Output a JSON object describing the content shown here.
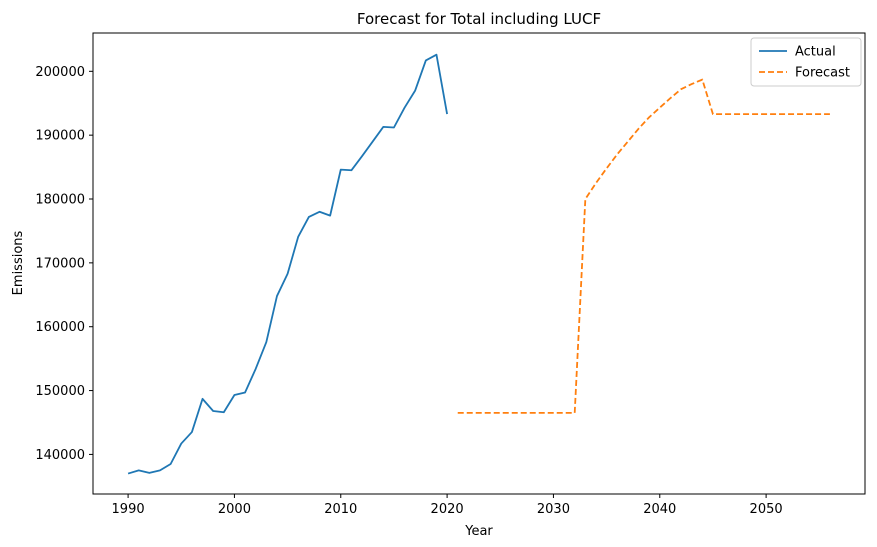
{
  "chart_data": {
    "type": "line",
    "title": "Forecast for Total including LUCF",
    "xlabel": "Year",
    "ylabel": "Emissions",
    "xlim": [
      1986.7,
      2059.3
    ],
    "ylim": [
      133800,
      206000
    ],
    "xticks": [
      1990,
      2000,
      2010,
      2020,
      2030,
      2040,
      2050
    ],
    "yticks": [
      140000,
      150000,
      160000,
      170000,
      180000,
      190000,
      200000
    ],
    "grid": false,
    "legend_position": "top-right",
    "series": [
      {
        "name": "Actual",
        "color": "#1f77b4",
        "style": "solid",
        "x": [
          1990,
          1991,
          1992,
          1993,
          1994,
          1995,
          1996,
          1997,
          1998,
          1999,
          2000,
          2001,
          2002,
          2003,
          2004,
          2005,
          2006,
          2007,
          2008,
          2009,
          2010,
          2011,
          2012,
          2013,
          2014,
          2015,
          2016,
          2017,
          2018,
          2019,
          2020
        ],
        "y": [
          137000,
          137500,
          137100,
          137500,
          138500,
          141700,
          143500,
          148700,
          146800,
          146600,
          149300,
          149700,
          153400,
          157600,
          164800,
          168300,
          174100,
          177200,
          178000,
          177400,
          184600,
          184500,
          186700,
          189000,
          191300,
          191200,
          194300,
          197000,
          201700,
          202600,
          193300
        ]
      },
      {
        "name": "Forecast",
        "color": "#ff7f0e",
        "style": "dashed",
        "x": [
          2021,
          2022,
          2023,
          2024,
          2025,
          2026,
          2027,
          2028,
          2029,
          2030,
          2031,
          2032,
          2033,
          2034,
          2035,
          2036,
          2037,
          2038,
          2039,
          2040,
          2041,
          2042,
          2043,
          2044,
          2045,
          2046,
          2047,
          2048,
          2049,
          2050,
          2051,
          2052,
          2053,
          2054,
          2055,
          2056
        ],
        "y": [
          146500,
          146500,
          146500,
          146500,
          146500,
          146500,
          146500,
          146500,
          146500,
          146500,
          146500,
          146500,
          180000,
          182500,
          184800,
          187000,
          189000,
          191000,
          192800,
          194300,
          195800,
          197200,
          198000,
          198700,
          193300,
          193300,
          193300,
          193300,
          193300,
          193300,
          193300,
          193300,
          193300,
          193300,
          193300,
          193300
        ]
      }
    ]
  }
}
